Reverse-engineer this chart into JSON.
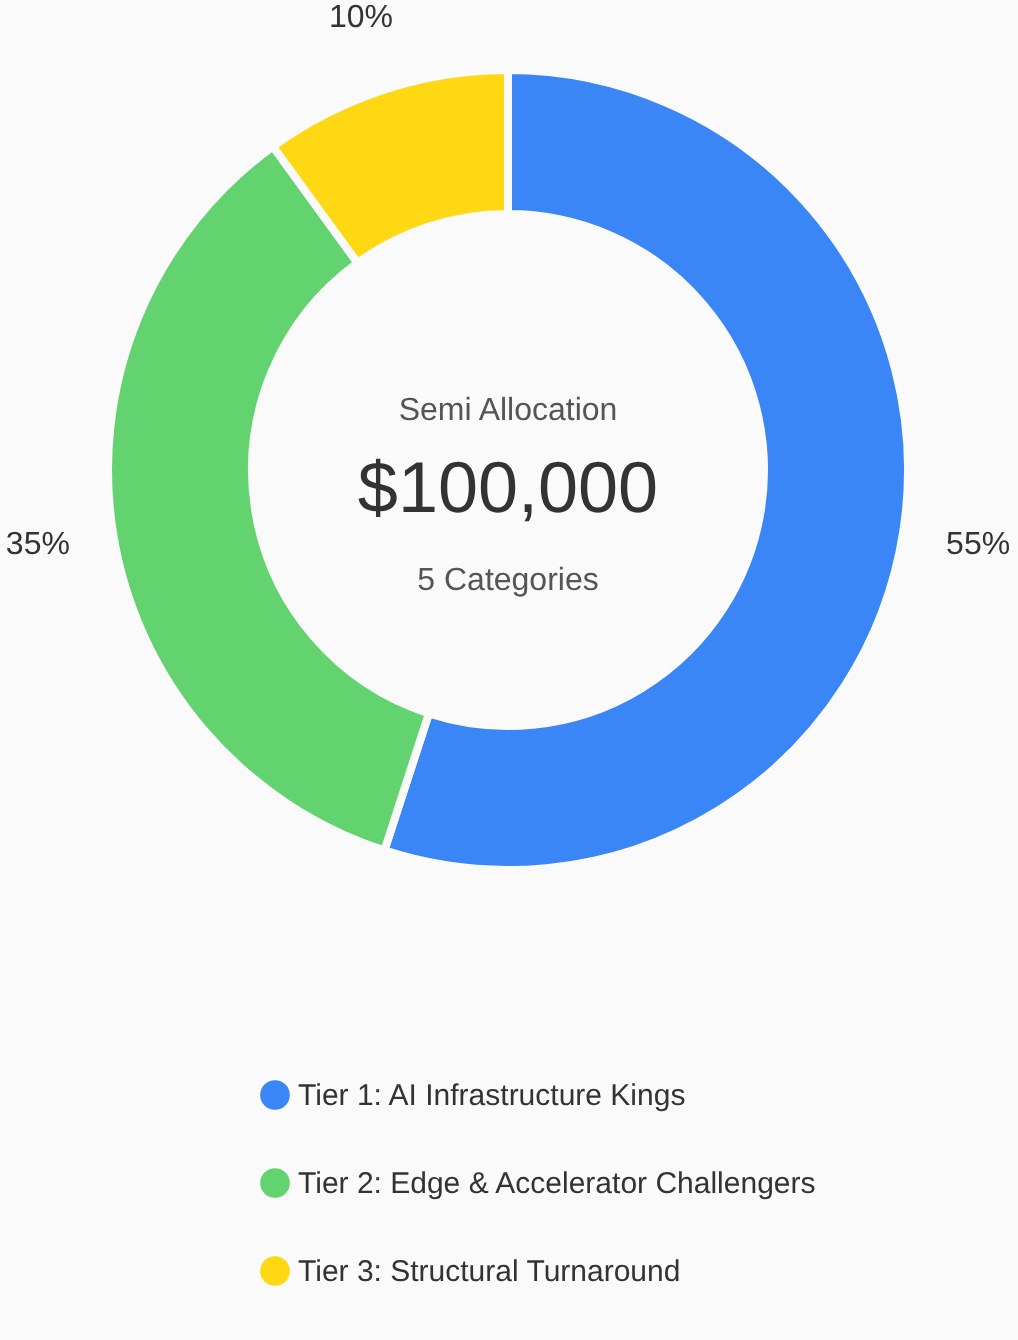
{
  "chart_data": {
    "type": "donut",
    "categories": [
      "Tier 1: AI Infrastructure Kings",
      "Tier 2: Edge & Accelerator Challengers",
      "Tier 3: Structural Turnaround"
    ],
    "values": [
      55,
      35,
      10
    ],
    "colors": [
      "#3a86f7",
      "#62d36f",
      "#ffd814"
    ],
    "value_labels": [
      "55%",
      "35%",
      "10%"
    ],
    "annotations": [
      "Semi Allocation",
      "$100,000",
      "5 Categories"
    ],
    "legend": "bottom"
  }
}
